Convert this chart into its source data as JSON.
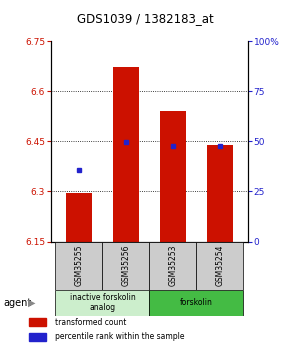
{
  "title": "GDS1039 / 1382183_at",
  "samples": [
    "GSM35255",
    "GSM35256",
    "GSM35253",
    "GSM35254"
  ],
  "bar_tops": [
    6.295,
    6.672,
    6.54,
    6.44
  ],
  "bar_base": 6.15,
  "blue_dots": [
    6.363,
    6.447,
    6.435,
    6.435
  ],
  "ylim_left": [
    6.15,
    6.75
  ],
  "yticks_left": [
    6.15,
    6.3,
    6.45,
    6.6,
    6.75
  ],
  "yticks_right": [
    0,
    25,
    50,
    75,
    100
  ],
  "bar_color": "#cc1100",
  "blue_color": "#2222cc",
  "bar_width": 0.55,
  "groups": [
    {
      "label": "inactive forskolin\nanalog",
      "samples": [
        0,
        1
      ],
      "color": "#cceecc"
    },
    {
      "label": "forskolin",
      "samples": [
        2,
        3
      ],
      "color": "#44bb44"
    }
  ],
  "legend_items": [
    {
      "color": "#cc1100",
      "label": "transformed count"
    },
    {
      "color": "#2222cc",
      "label": "percentile rank within the sample"
    }
  ],
  "agent_label": "agent",
  "background_color": "#ffffff",
  "sample_label_color": "#cccccc",
  "gridlines": [
    6.3,
    6.45,
    6.6
  ]
}
